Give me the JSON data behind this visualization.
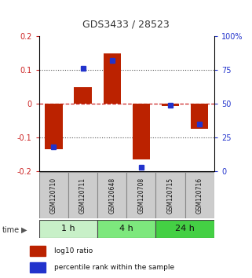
{
  "title": "GDS3433 / 28523",
  "samples": [
    "GSM120710",
    "GSM120711",
    "GSM120648",
    "GSM120708",
    "GSM120715",
    "GSM120716"
  ],
  "log10_ratio": [
    -0.135,
    0.048,
    0.148,
    -0.165,
    -0.008,
    -0.075
  ],
  "percentile_rank": [
    18,
    76,
    82,
    3,
    49,
    35
  ],
  "time_groups": [
    {
      "label": "1 h",
      "samples": [
        0,
        1
      ],
      "color": "#c8f0c8"
    },
    {
      "label": "4 h",
      "samples": [
        2,
        3
      ],
      "color": "#7de87d"
    },
    {
      "label": "24 h",
      "samples": [
        4,
        5
      ],
      "color": "#44d044"
    }
  ],
  "bar_color": "#bb2200",
  "dot_color": "#2233cc",
  "ylim_left": [
    -0.2,
    0.2
  ],
  "yticks_left": [
    -0.2,
    -0.1,
    0.0,
    0.1,
    0.2
  ],
  "ytick_labels_left": [
    "-0.2",
    "-0.1",
    "0",
    "0.1",
    "0.2"
  ],
  "yticks_right": [
    0,
    25,
    50,
    75,
    100
  ],
  "ytick_labels_right": [
    "0",
    "25",
    "50",
    "75",
    "100%"
  ],
  "left_tick_color": "#cc2222",
  "right_tick_color": "#2233cc",
  "sample_box_color": "#cccccc",
  "sample_box_edge": "#888888",
  "bar_width": 0.6,
  "dot_size": 4
}
